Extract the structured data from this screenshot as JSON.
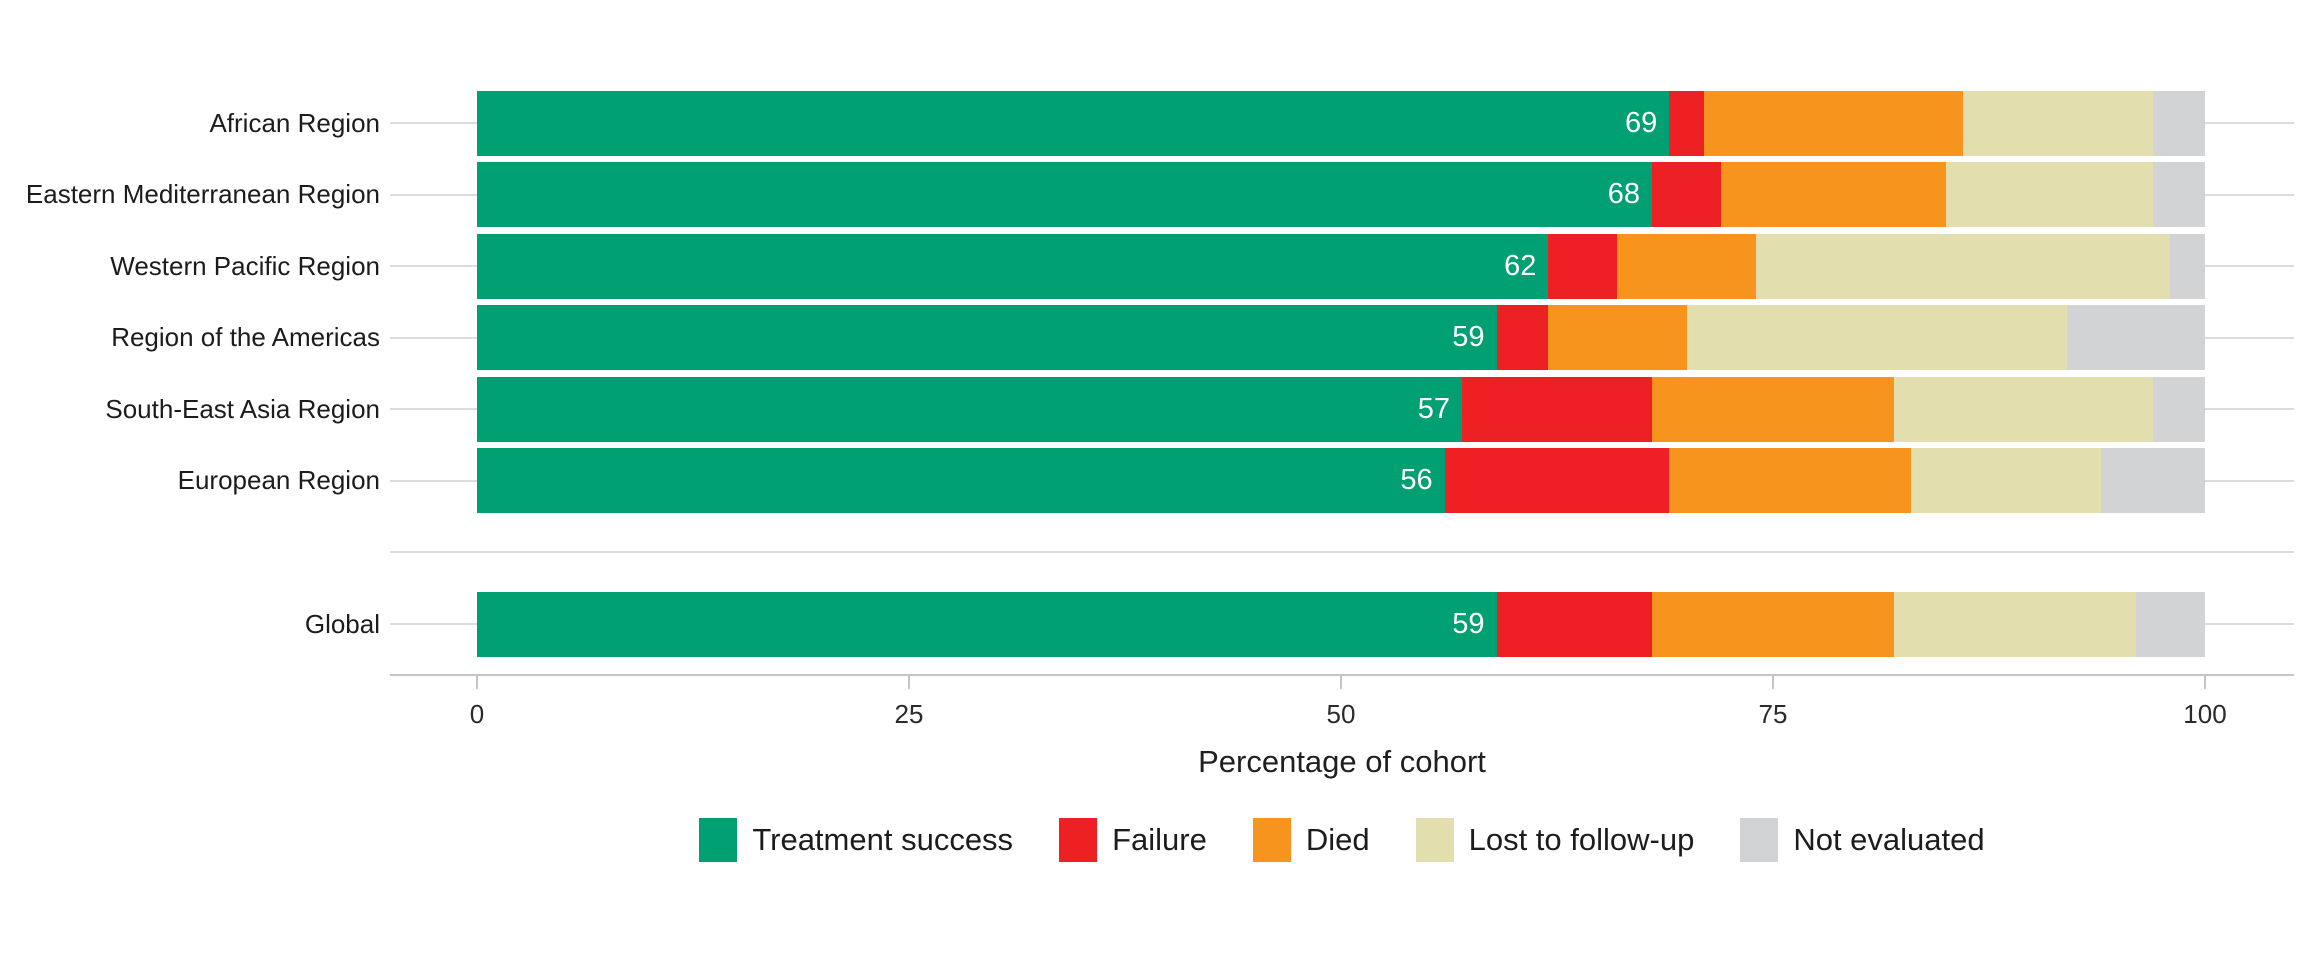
{
  "chart_data": {
    "type": "bar",
    "orientation": "horizontal",
    "stacked": true,
    "title": "",
    "xlabel": "Percentage of cohort",
    "ylabel": "",
    "xlim": [
      0,
      100
    ],
    "xticks": [
      0,
      25,
      50,
      75,
      100
    ],
    "grid": "category-gridlines",
    "legend_position": "bottom",
    "categories": [
      "African Region",
      "Eastern Mediterranean Region",
      "Western Pacific Region",
      "Region of the Americas",
      "South-East Asia Region",
      "European Region",
      "Global"
    ],
    "series": [
      {
        "name": "Treatment success",
        "color": "#00a073",
        "values": [
          69,
          68,
          62,
          59,
          57,
          56,
          59
        ]
      },
      {
        "name": "Failure",
        "color": "#ed2024",
        "values": [
          2,
          4,
          4,
          3,
          11,
          13,
          9
        ]
      },
      {
        "name": "Died",
        "color": "#f7941e",
        "values": [
          15,
          13,
          8,
          8,
          14,
          14,
          14
        ]
      },
      {
        "name": "Lost to follow-up",
        "color": "#e3deae",
        "values": [
          11,
          12,
          24,
          22,
          15,
          11,
          14
        ]
      },
      {
        "name": "Not evaluated",
        "color": "#d1d3d4",
        "values": [
          3,
          3,
          2,
          8,
          3,
          6,
          4
        ]
      }
    ],
    "bar_labels": [
      "69",
      "68",
      "62",
      "59",
      "57",
      "56",
      "59"
    ]
  }
}
